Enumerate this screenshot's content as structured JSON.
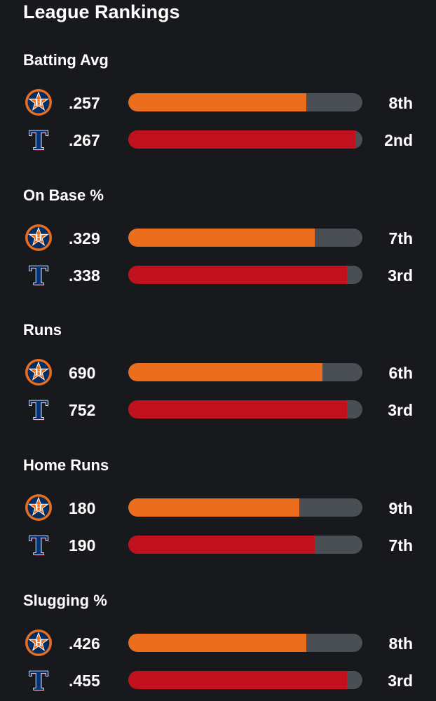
{
  "page": {
    "title": "League Rankings"
  },
  "colors": {
    "astros": "#eb6e1f",
    "rangers": "#c1111f",
    "track": "#4a4f55",
    "background": "#17191c"
  },
  "teams": {
    "astros": {
      "logo_icon": "houston-astros-logo-icon",
      "logo_letter": "H"
    },
    "rangers": {
      "logo_icon": "texas-rangers-logo-icon",
      "logo_letter": "T"
    }
  },
  "sections": [
    {
      "title": "Batting Avg",
      "rows": [
        {
          "team": "astros",
          "value": ".257",
          "rank": "8th",
          "fill": 0.76
        },
        {
          "team": "rangers",
          "value": ".267",
          "rank": "2nd",
          "fill": 0.97
        }
      ]
    },
    {
      "title": "On Base %",
      "rows": [
        {
          "team": "astros",
          "value": ".329",
          "rank": "7th",
          "fill": 0.795
        },
        {
          "team": "rangers",
          "value": ".338",
          "rank": "3rd",
          "fill": 0.935
        }
      ]
    },
    {
      "title": "Runs",
      "rows": [
        {
          "team": "astros",
          "value": "690",
          "rank": "6th",
          "fill": 0.83
        },
        {
          "team": "rangers",
          "value": "752",
          "rank": "3rd",
          "fill": 0.935
        }
      ]
    },
    {
      "title": "Home Runs",
      "rows": [
        {
          "team": "astros",
          "value": "180",
          "rank": "9th",
          "fill": 0.73
        },
        {
          "team": "rangers",
          "value": "190",
          "rank": "7th",
          "fill": 0.795
        }
      ]
    },
    {
      "title": "Slugging %",
      "rows": [
        {
          "team": "astros",
          "value": ".426",
          "rank": "8th",
          "fill": 0.76
        },
        {
          "team": "rangers",
          "value": ".455",
          "rank": "3rd",
          "fill": 0.935
        }
      ]
    }
  ]
}
